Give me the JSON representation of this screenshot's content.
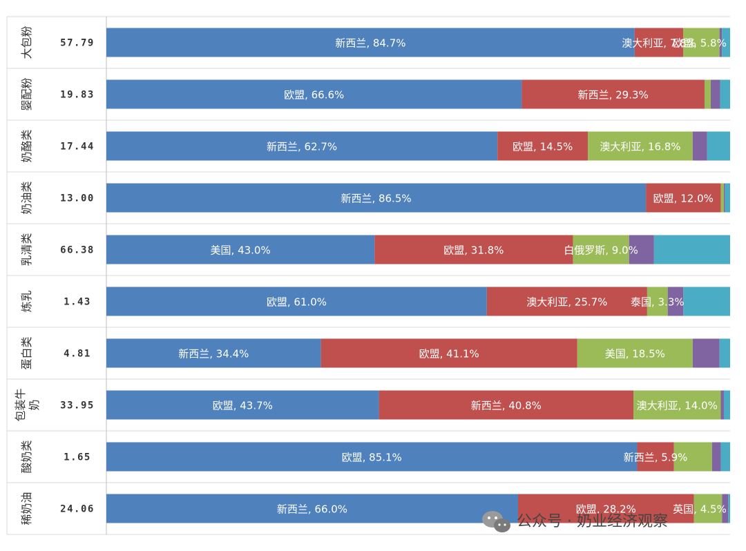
{
  "colors": {
    "blue": "#4f81bd",
    "red": "#c0504d",
    "green": "#9bbb59",
    "purple": "#8064a2",
    "teal": "#4bacc6"
  },
  "watermark": {
    "icon": "wechat-icon",
    "text": "公众号 · 奶业经济观察"
  },
  "chart_data": {
    "type": "bar",
    "orientation": "horizontal",
    "stacked": "percent",
    "xlim": [
      0,
      100
    ],
    "grid": false,
    "legend": "none",
    "rows": [
      {
        "category": "大包粉",
        "value_label": "57.79",
        "segments": [
          {
            "country": "新西兰",
            "percent": 84.7,
            "label": "新西兰, 84.7%",
            "color": "blue"
          },
          {
            "country": "澳大利亚",
            "percent": 7.8,
            "label": "澳大利亚, 7.8%",
            "color": "red"
          },
          {
            "country": "欧盟",
            "percent": 5.8,
            "label": "欧盟, 5.8%",
            "color": "green"
          },
          {
            "country": "",
            "percent": 0.4,
            "label": "",
            "color": "purple"
          },
          {
            "country": "",
            "percent": 1.3,
            "label": "",
            "color": "teal"
          }
        ]
      },
      {
        "category": "婴配粉",
        "value_label": "19.83",
        "segments": [
          {
            "country": "欧盟",
            "percent": 66.6,
            "label": "欧盟, 66.6%",
            "color": "blue"
          },
          {
            "country": "新西兰",
            "percent": 29.3,
            "label": "新西兰, 29.3%",
            "color": "red"
          },
          {
            "country": "",
            "percent": 1.0,
            "label": "",
            "color": "green"
          },
          {
            "country": "",
            "percent": 1.5,
            "label": "",
            "color": "purple"
          },
          {
            "country": "",
            "percent": 1.6,
            "label": "",
            "color": "teal"
          }
        ]
      },
      {
        "category": "奶酪类",
        "value_label": "17.44",
        "segments": [
          {
            "country": "新西兰",
            "percent": 62.7,
            "label": "新西兰, 62.7%",
            "color": "blue"
          },
          {
            "country": "欧盟",
            "percent": 14.5,
            "label": "欧盟, 14.5%",
            "color": "red"
          },
          {
            "country": "澳大利亚",
            "percent": 16.8,
            "label": "澳大利亚, 16.8%",
            "color": "green"
          },
          {
            "country": "",
            "percent": 2.3,
            "label": "",
            "color": "purple"
          },
          {
            "country": "",
            "percent": 3.7,
            "label": "",
            "color": "teal"
          }
        ]
      },
      {
        "category": "奶油类",
        "value_label": "13.00",
        "segments": [
          {
            "country": "新西兰",
            "percent": 86.5,
            "label": "新西兰, 86.5%",
            "color": "blue"
          },
          {
            "country": "欧盟",
            "percent": 12.0,
            "label": "欧盟, 12.0%",
            "color": "red"
          },
          {
            "country": "",
            "percent": 0.5,
            "label": "",
            "color": "green"
          },
          {
            "country": "",
            "percent": 0.2,
            "label": "",
            "color": "purple"
          },
          {
            "country": "",
            "percent": 0.8,
            "label": "",
            "color": "teal"
          }
        ]
      },
      {
        "category": "乳清类",
        "value_label": "66.38",
        "segments": [
          {
            "country": "美国",
            "percent": 43.0,
            "label": "美国, 43.0%",
            "color": "blue"
          },
          {
            "country": "欧盟",
            "percent": 31.8,
            "label": "欧盟, 31.8%",
            "color": "red"
          },
          {
            "country": "白俄罗斯",
            "percent": 9.0,
            "label": "白俄罗斯, 9.0%",
            "color": "green"
          },
          {
            "country": "",
            "percent": 4.0,
            "label": "",
            "color": "purple"
          },
          {
            "country": "",
            "percent": 12.2,
            "label": "",
            "color": "teal"
          }
        ]
      },
      {
        "category": "炼乳",
        "value_label": "1.43",
        "segments": [
          {
            "country": "欧盟",
            "percent": 61.0,
            "label": "欧盟, 61.0%",
            "color": "blue"
          },
          {
            "country": "澳大利亚",
            "percent": 25.7,
            "label": "澳大利亚, 25.7%",
            "color": "red"
          },
          {
            "country": "泰国",
            "percent": 3.3,
            "label": "泰国, 3.3%",
            "color": "green"
          },
          {
            "country": "",
            "percent": 2.5,
            "label": "",
            "color": "purple"
          },
          {
            "country": "",
            "percent": 7.5,
            "label": "",
            "color": "teal"
          }
        ]
      },
      {
        "category": "蛋白类",
        "value_label": "4.81",
        "segments": [
          {
            "country": "新西兰",
            "percent": 34.4,
            "label": "新西兰, 34.4%",
            "color": "blue"
          },
          {
            "country": "欧盟",
            "percent": 41.1,
            "label": "欧盟, 41.1%",
            "color": "red"
          },
          {
            "country": "美国",
            "percent": 18.5,
            "label": "美国, 18.5%",
            "color": "green"
          },
          {
            "country": "",
            "percent": 4.3,
            "label": "",
            "color": "purple"
          },
          {
            "country": "",
            "percent": 1.7,
            "label": "",
            "color": "teal"
          }
        ]
      },
      {
        "category": "包装牛奶",
        "value_label": "33.95",
        "segments": [
          {
            "country": "欧盟",
            "percent": 43.7,
            "label": "欧盟, 43.7%",
            "color": "blue"
          },
          {
            "country": "新西兰",
            "percent": 40.8,
            "label": "新西兰, 40.8%",
            "color": "red"
          },
          {
            "country": "澳大利亚",
            "percent": 14.0,
            "label": "澳大利亚, 14.0%",
            "color": "green"
          },
          {
            "country": "",
            "percent": 0.5,
            "label": "",
            "color": "purple"
          },
          {
            "country": "",
            "percent": 1.0,
            "label": "",
            "color": "teal"
          }
        ]
      },
      {
        "category": "酸奶类",
        "value_label": "1.65",
        "segments": [
          {
            "country": "欧盟",
            "percent": 85.1,
            "label": "欧盟, 85.1%",
            "color": "blue"
          },
          {
            "country": "新西兰",
            "percent": 5.9,
            "label": "新西兰, 5.9%",
            "color": "red"
          },
          {
            "country": "",
            "percent": 6.1,
            "label": "",
            "color": "green"
          },
          {
            "country": "",
            "percent": 1.4,
            "label": "",
            "color": "purple"
          },
          {
            "country": "",
            "percent": 1.5,
            "label": "",
            "color": "teal"
          }
        ]
      },
      {
        "category": "稀奶油",
        "value_label": "24.06",
        "segments": [
          {
            "country": "新西兰",
            "percent": 66.0,
            "label": "新西兰, 66.0%",
            "color": "blue"
          },
          {
            "country": "欧盟",
            "percent": 28.2,
            "label": "欧盟, 28.2%",
            "color": "red"
          },
          {
            "country": "英国",
            "percent": 4.5,
            "label": "英国, 4.5%",
            "color": "green"
          },
          {
            "country": "",
            "percent": 1.0,
            "label": "",
            "color": "purple"
          },
          {
            "country": "",
            "percent": 0.3,
            "label": "",
            "color": "teal"
          }
        ]
      }
    ]
  }
}
